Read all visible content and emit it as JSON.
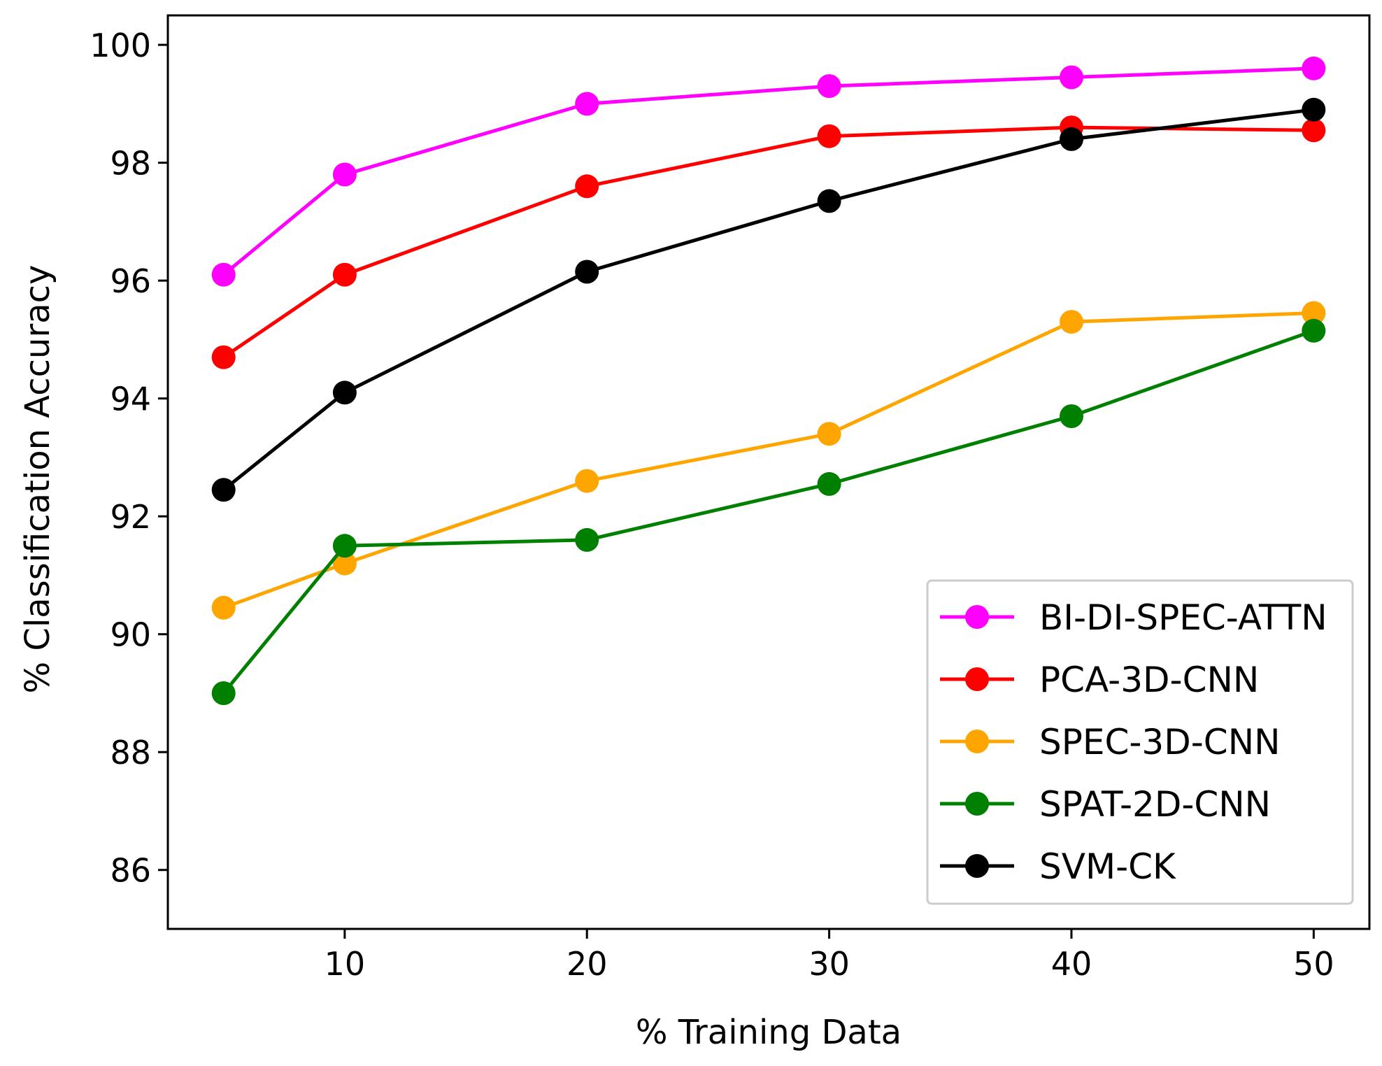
{
  "chart_data": {
    "type": "line",
    "title": "",
    "xlabel": "% Training Data",
    "ylabel": "% Classification Accuracy",
    "xlim": [
      2.7,
      52.3
    ],
    "ylim": [
      85,
      100.5
    ],
    "xticks": [
      10,
      20,
      30,
      40,
      50
    ],
    "yticks": [
      86,
      88,
      90,
      92,
      94,
      96,
      98,
      100
    ],
    "grid": false,
    "legend_position": "lower-right",
    "x": [
      5,
      10,
      20,
      30,
      40,
      50
    ],
    "series": [
      {
        "name": "BI-DI-SPEC-ATTN",
        "color": "#ff00ff",
        "values": [
          96.1,
          97.8,
          99.0,
          99.3,
          99.45,
          99.6
        ]
      },
      {
        "name": "PCA-3D-CNN",
        "color": "#ff0000",
        "values": [
          94.7,
          96.1,
          97.6,
          98.45,
          98.6,
          98.55
        ]
      },
      {
        "name": "SPEC-3D-CNN",
        "color": "#ffa500",
        "values": [
          90.45,
          91.2,
          92.6,
          93.4,
          95.3,
          95.45
        ]
      },
      {
        "name": "SPAT-2D-CNN",
        "color": "#008000",
        "values": [
          89.0,
          91.5,
          91.6,
          92.55,
          93.7,
          95.15
        ]
      },
      {
        "name": "SVM-CK",
        "color": "#000000",
        "values": [
          92.45,
          94.1,
          96.15,
          97.35,
          98.4,
          98.9
        ]
      }
    ]
  }
}
